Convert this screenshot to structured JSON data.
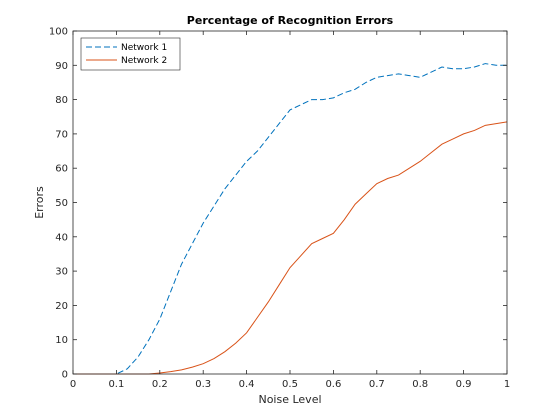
{
  "chart_data": {
    "type": "line",
    "title": "Percentage of Recognition Errors",
    "xlabel": "Noise Level",
    "ylabel": "Errors",
    "xlim": [
      0,
      1
    ],
    "ylim": [
      0,
      100
    ],
    "xticks": [
      0,
      0.1,
      0.2,
      0.3,
      0.4,
      0.5,
      0.6,
      0.7,
      0.8,
      0.9,
      1
    ],
    "xtick_labels": [
      "0",
      "0.1",
      "0.2",
      "0.3",
      "0.4",
      "0.5",
      "0.6",
      "0.7",
      "0.8",
      "0.9",
      "1"
    ],
    "yticks": [
      0,
      10,
      20,
      30,
      40,
      50,
      60,
      70,
      80,
      90,
      100
    ],
    "ytick_labels": [
      "0",
      "10",
      "20",
      "30",
      "40",
      "50",
      "60",
      "70",
      "80",
      "90",
      "100"
    ],
    "grid": false,
    "legend": {
      "position": "top-left"
    },
    "x": [
      0,
      0.025,
      0.05,
      0.075,
      0.1,
      0.125,
      0.15,
      0.175,
      0.2,
      0.225,
      0.25,
      0.275,
      0.3,
      0.325,
      0.35,
      0.375,
      0.4,
      0.425,
      0.45,
      0.475,
      0.5,
      0.525,
      0.55,
      0.575,
      0.6,
      0.625,
      0.65,
      0.675,
      0.7,
      0.725,
      0.75,
      0.775,
      0.8,
      0.825,
      0.85,
      0.875,
      0.9,
      0.925,
      0.95,
      0.975,
      1
    ],
    "series": [
      {
        "name": "Network 1",
        "style": "dashed",
        "color": "#0072BD",
        "values": [
          0,
          0,
          0,
          0,
          0,
          1.5,
          5,
          10,
          16,
          24,
          32,
          38,
          44,
          49,
          54,
          58,
          62,
          65,
          69,
          73,
          77,
          78.5,
          80,
          80,
          80.5,
          82,
          83,
          85,
          86.5,
          87,
          87.5,
          87,
          86.5,
          88,
          89.5,
          89,
          89,
          89.5,
          90.5,
          90,
          90
        ]
      },
      {
        "name": "Network 2",
        "style": "solid",
        "color": "#D95319",
        "values": [
          0,
          0,
          0,
          0,
          0,
          0,
          0,
          0,
          0.3,
          0.7,
          1.2,
          2,
          3,
          4.5,
          6.5,
          9,
          12,
          16.5,
          21,
          26,
          31,
          34.5,
          38,
          39.5,
          41,
          45,
          49.5,
          52.5,
          55.5,
          57,
          58,
          60,
          62,
          64.5,
          67,
          68.5,
          70,
          71,
          72.5,
          73,
          73.5
        ]
      }
    ]
  }
}
